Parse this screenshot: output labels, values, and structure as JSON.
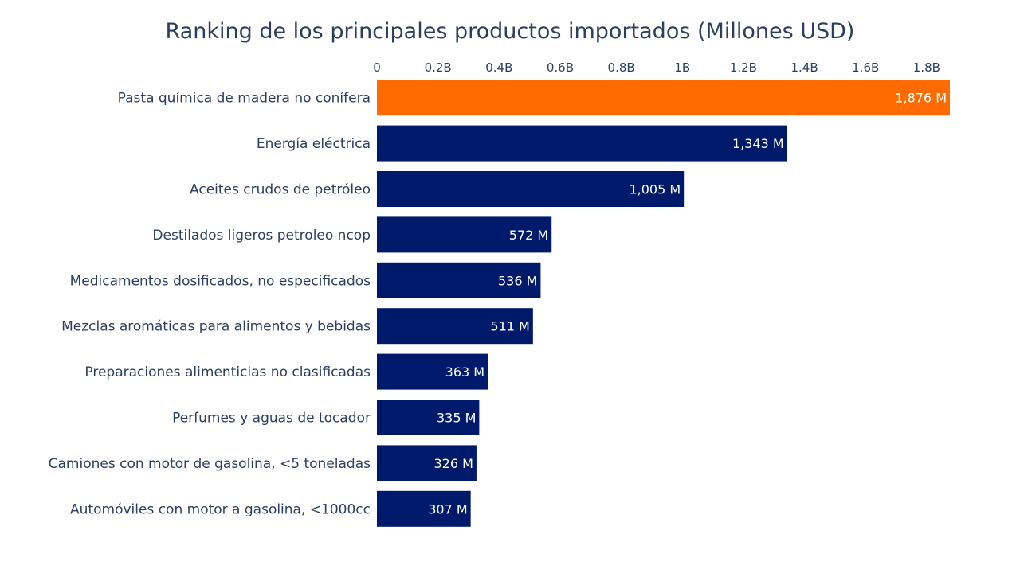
{
  "chart_data": {
    "type": "bar",
    "orientation": "horizontal",
    "title": "Ranking de los principales productos importados (Millones USD)",
    "xlabel": "",
    "ylabel": "",
    "xaxis_side": "top",
    "xlim": [
      0,
      1876
    ],
    "x_ticks": [
      {
        "value": 0,
        "label": "0"
      },
      {
        "value": 200,
        "label": "0.2B"
      },
      {
        "value": 400,
        "label": "0.4B"
      },
      {
        "value": 600,
        "label": "0.6B"
      },
      {
        "value": 800,
        "label": "0.8B"
      },
      {
        "value": 1000,
        "label": "1B"
      },
      {
        "value": 1200,
        "label": "1.2B"
      },
      {
        "value": 1400,
        "label": "1.4B"
      },
      {
        "value": 1600,
        "label": "1.6B"
      },
      {
        "value": 1800,
        "label": "1.8B"
      }
    ],
    "categories": [
      "Pasta química de madera no conífera",
      "Energía eléctrica",
      "Aceites crudos de petróleo",
      "Destilados ligeros petroleo ncop",
      "Medicamentos dosificados, no especificados",
      "Mezclas aromáticas para alimentos y bebidas",
      "Preparaciones alimenticias no clasificadas",
      "Perfumes y aguas de tocador",
      "Camiones con motor de gasolina, <5 toneladas",
      "Automóviles con motor a gasolina, <1000cc"
    ],
    "values": [
      1876,
      1343,
      1005,
      572,
      536,
      511,
      363,
      335,
      326,
      307
    ],
    "value_labels": [
      "1,876 M",
      "1,343 M",
      "1,005 M",
      "572 M",
      "536 M",
      "511 M",
      "363 M",
      "335 M",
      "326 M",
      "307 M"
    ],
    "bar_colors": [
      "#ff6b00",
      "#001a6b",
      "#001a6b",
      "#001a6b",
      "#001a6b",
      "#001a6b",
      "#001a6b",
      "#001a6b",
      "#001a6b",
      "#001a6b"
    ],
    "grid": false,
    "legend": "none"
  }
}
